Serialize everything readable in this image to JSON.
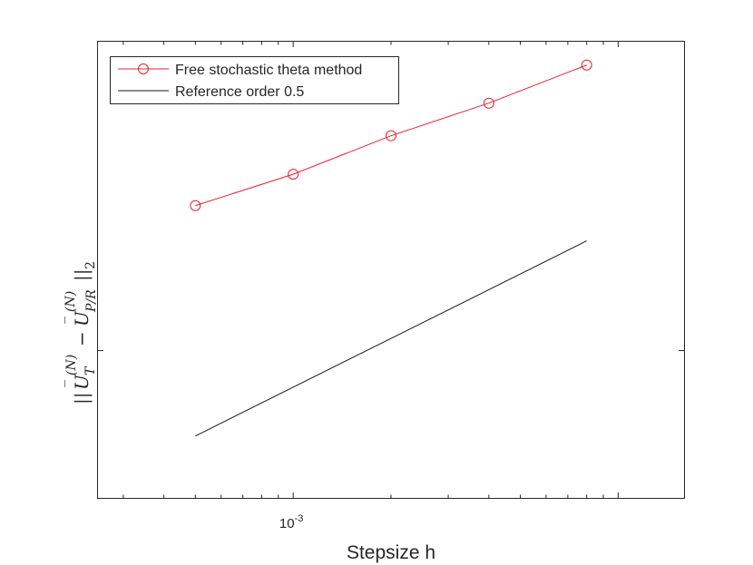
{
  "chart_data": {
    "type": "line",
    "xscale": "log",
    "yscale": "log",
    "title": "",
    "xlabel": "Stepsize h",
    "ylabel": "||Ū_T^(N) − Ū_{P/R}^(N)||_2",
    "xlim": [
      0.00025,
      0.016
    ],
    "ylim": [
      0.035,
      0.9
    ],
    "x_tick_labels": [
      {
        "value": 0.001,
        "base": "10",
        "exponent": "-3"
      }
    ],
    "legend_position": "top-left",
    "grid": false,
    "series": [
      {
        "name": "Free stochastic theta method",
        "color": "#e8202b",
        "marker": "circle",
        "x": [
          0.0005,
          0.001,
          0.002,
          0.004,
          0.008
        ],
        "y": [
          0.28,
          0.35,
          0.46,
          0.58,
          0.76
        ]
      },
      {
        "name": "Reference order 0.5",
        "color": "#1a1a1a",
        "marker": "none",
        "x": [
          0.0005,
          0.008
        ],
        "y": [
          0.0545,
          0.218
        ]
      }
    ]
  }
}
